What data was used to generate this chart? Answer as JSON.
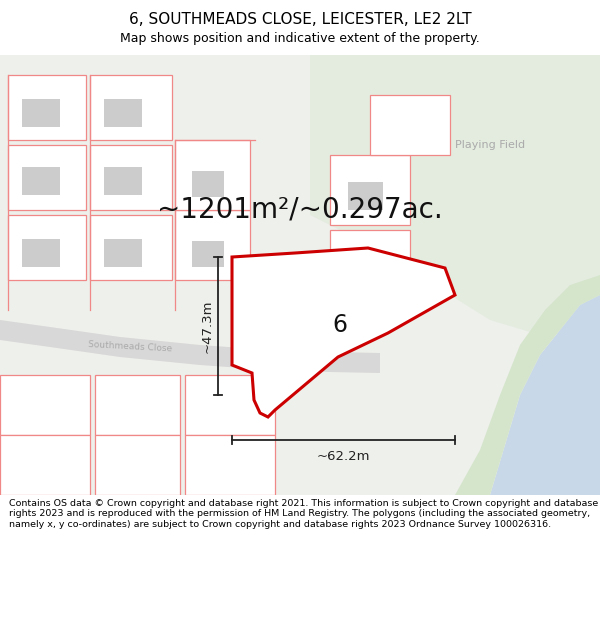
{
  "title": "6, SOUTHMEADS CLOSE, LEICESTER, LE2 2LT",
  "subtitle": "Map shows position and indicative extent of the property.",
  "area_text": "~1201m²/~0.297ac.",
  "number_label": "6",
  "playing_field_label": "Playing Field",
  "road_label": "Southmeads Close",
  "dim_vertical": "~47.3m",
  "dim_horizontal": "~62.2m",
  "footer_text": "Contains OS data © Crown copyright and database right 2021. This information is subject to Crown copyright and database rights 2023 and is reproduced with the permission of HM Land Registry. The polygons (including the associated geometry, namely x, y co-ordinates) are subject to Crown copyright and database rights 2023 Ordnance Survey 100026316.",
  "map_bg": "#eef0eb",
  "playing_field_color": "#e4ece0",
  "water_color": "#c8d8e8",
  "green_shore_color": "#d5e5cc",
  "road_color": "#d8d8d8",
  "pink_edge": "#f08888",
  "red_edge": "#cc0000",
  "gray_building": "#cccccc",
  "white": "#ffffff",
  "road_label_color": "#aaaaaa",
  "playing_field_label_color": "#aaaaaa",
  "dim_color": "#222222",
  "area_text_color": "#111111",
  "number_color": "#111111"
}
